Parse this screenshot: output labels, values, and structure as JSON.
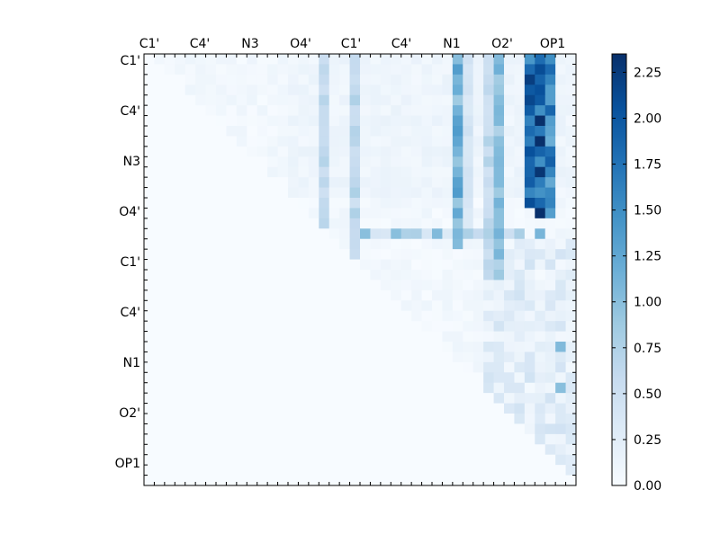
{
  "chart_data": {
    "type": "heatmap",
    "title": "",
    "xlabel": "",
    "ylabel": "",
    "tick_labels": [
      "C1'",
      "C4'",
      "N3",
      "O4'",
      "C1'",
      "C4'",
      "N1",
      "O2'",
      "OP1"
    ],
    "n_cells": 42,
    "color_scale": {
      "min": 0.0,
      "max": 2.35,
      "low_color": "#f7fbff",
      "high_color": "#08306b"
    },
    "colorbar_ticks": [
      "0.00",
      "0.25",
      "0.50",
      "0.75",
      "1.00",
      "1.25",
      "1.50",
      "1.75",
      "2.00",
      "2.25"
    ],
    "colorbar_values": [
      0.0,
      0.25,
      0.5,
      0.75,
      1.0,
      1.25,
      1.5,
      1.75,
      2.0,
      2.25
    ],
    "note_values": "Upper-triangular distance-difference matrix; cell values are estimated from the color scale.",
    "column_bands": [
      {
        "col": 17,
        "rows": [
          0,
          21
        ],
        "value": 0.65
      },
      {
        "col": 20,
        "rows": [
          0,
          21
        ],
        "value": 0.7
      },
      {
        "col": 30,
        "rows": [
          0,
          18
        ],
        "value": 1.3
      },
      {
        "col": 31,
        "rows": [
          0,
          16
        ],
        "value": 0.45
      },
      {
        "col": 33,
        "rows": [
          0,
          21
        ],
        "value": 0.7
      },
      {
        "col": 34,
        "rows": [
          0,
          21
        ],
        "value": 1.05
      },
      {
        "col": 37,
        "rows": [
          0,
          14
        ],
        "value": 2.05
      },
      {
        "col": 38,
        "rows": [
          0,
          15
        ],
        "value": 2.2
      },
      {
        "col": 39,
        "rows": [
          0,
          15
        ],
        "value": 1.8
      }
    ],
    "row_band": {
      "row": 17,
      "cols": [
        20,
        36
      ],
      "value": 0.8
    },
    "bright_cells": [
      {
        "row": 11,
        "col": 38,
        "value": 2.3
      },
      {
        "row": 17,
        "col": 38,
        "value": 1.1
      },
      {
        "row": 28,
        "col": 40,
        "value": 1.05
      },
      {
        "row": 32,
        "col": 40,
        "value": 1.0
      },
      {
        "row": 17,
        "col": 21,
        "value": 1.0
      },
      {
        "row": 17,
        "col": 24,
        "value": 1.0
      },
      {
        "row": 17,
        "col": 28,
        "value": 1.05
      }
    ]
  }
}
